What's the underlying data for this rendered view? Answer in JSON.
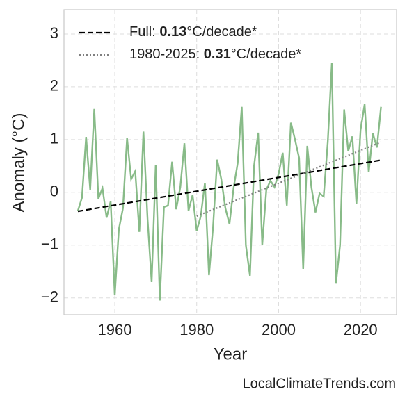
{
  "chart_data": {
    "type": "line",
    "x_label": "Year",
    "y_label": "Anomaly (°C)",
    "watermark": "LocalClimateTrends.com",
    "xlim": [
      1947.6,
      2028.8
    ],
    "ylim": [
      -2.32,
      3.46
    ],
    "xticks": [
      1960,
      1980,
      2000,
      2020
    ],
    "yticks": [
      {
        "value": -2,
        "label": "−2"
      },
      {
        "value": -1,
        "label": "−1"
      },
      0,
      1,
      2,
      3
    ],
    "grid": true,
    "legend": "upper left",
    "series": [
      {
        "name": "Anomaly",
        "color": "#88bb88",
        "x": [
          1951,
          1952,
          1953,
          1954,
          1955,
          1956,
          1957,
          1958,
          1959,
          1960,
          1961,
          1962,
          1963,
          1964,
          1965,
          1966,
          1967,
          1968,
          1969,
          1970,
          1971,
          1972,
          1973,
          1974,
          1975,
          1976,
          1977,
          1978,
          1979,
          1980,
          1981,
          1982,
          1983,
          1984,
          1985,
          1986,
          1987,
          1988,
          1989,
          1990,
          1991,
          1992,
          1993,
          1994,
          1995,
          1996,
          1997,
          1998,
          1999,
          2000,
          2001,
          2002,
          2003,
          2004,
          2005,
          2006,
          2007,
          2008,
          2009,
          2010,
          2011,
          2012,
          2013,
          2014,
          2015,
          2016,
          2017,
          2018,
          2019,
          2020,
          2021,
          2022,
          2023,
          2024,
          2025
        ],
        "values": [
          -0.35,
          -0.1,
          1.05,
          0.05,
          1.58,
          -0.12,
          0.08,
          -0.48,
          -0.17,
          -1.95,
          -0.7,
          -0.3,
          1.03,
          0.25,
          0.4,
          -0.75,
          1.15,
          -0.5,
          -1.7,
          0.52,
          -2.05,
          -0.28,
          -0.25,
          0.58,
          -0.32,
          0.1,
          0.93,
          -0.35,
          -0.05,
          -0.73,
          -0.45,
          0.18,
          -1.57,
          -0.65,
          0.62,
          0.25,
          -0.3,
          -0.6,
          0.08,
          0.55,
          1.62,
          -1.0,
          -1.58,
          0.5,
          1.13,
          -1.0,
          0.05,
          0.22,
          0.1,
          0.35,
          0.75,
          -0.25,
          1.32,
          1.0,
          0.65,
          -1.45,
          0.88,
          0.1,
          -0.38,
          -0.02,
          -0.08,
          0.95,
          2.45,
          -1.73,
          -1.0,
          1.57,
          0.78,
          1.06,
          -0.22,
          1.18,
          1.67,
          0.38,
          1.12,
          0.85,
          1.62
        ]
      },
      {
        "name": "Full: ",
        "slope": 0.13,
        "unit": "°C/decade*",
        "color": "#000000",
        "dash": "dashed",
        "x": [
          1951,
          2025
        ],
        "values": [
          -0.36,
          0.61
        ]
      },
      {
        "name": "1980-2025: ",
        "slope": 0.31,
        "unit": "°C/decade*",
        "color": "#808080",
        "dash": "dotted",
        "x": [
          1980,
          2025
        ],
        "values": [
          -0.45,
          0.95
        ]
      }
    ]
  }
}
